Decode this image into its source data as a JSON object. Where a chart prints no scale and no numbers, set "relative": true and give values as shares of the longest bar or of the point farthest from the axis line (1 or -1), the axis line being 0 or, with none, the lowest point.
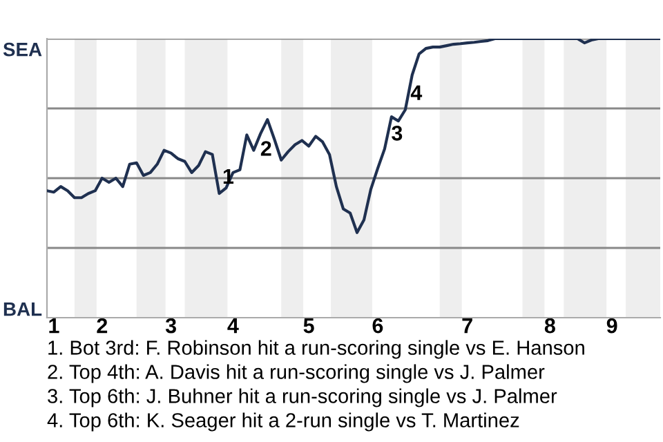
{
  "chart_data": {
    "type": "line",
    "relative": true,
    "categories": [
      null,
      "1",
      null,
      null,
      null,
      null,
      null,
      null,
      "2",
      null,
      null,
      null,
      null,
      null,
      null,
      null,
      null,
      null,
      "3",
      null,
      null,
      null,
      null,
      null,
      null,
      null,
      null,
      "4",
      null,
      null,
      null,
      null,
      null,
      null,
      null,
      null,
      null,
      null,
      "5",
      null,
      null,
      null,
      null,
      null,
      null,
      null,
      null,
      null,
      "6",
      null,
      null,
      null,
      null,
      null,
      null,
      null,
      null,
      null,
      null,
      null,
      null,
      "7",
      null,
      null,
      null,
      null,
      null,
      null,
      null,
      null,
      null,
      null,
      null,
      "8",
      null,
      null,
      null,
      null,
      null,
      null,
      null,
      null,
      "9",
      null,
      null,
      null,
      null,
      null,
      null,
      null
    ],
    "series": [
      {
        "color": "#1f3050",
        "values": [
          0.455,
          0.45,
          0.47,
          0.455,
          0.43,
          0.43,
          0.445,
          0.455,
          0.5,
          0.485,
          0.5,
          0.47,
          0.55,
          0.555,
          0.51,
          0.52,
          0.55,
          0.6,
          0.59,
          0.57,
          0.56,
          0.52,
          0.545,
          0.595,
          0.585,
          0.445,
          0.465,
          0.52,
          0.53,
          0.655,
          0.6,
          0.66,
          0.71,
          0.64,
          0.565,
          0.595,
          0.62,
          0.635,
          0.615,
          0.65,
          0.63,
          0.585,
          0.47,
          0.39,
          0.375,
          0.305,
          0.35,
          0.46,
          0.535,
          0.605,
          0.72,
          0.705,
          0.745,
          0.87,
          0.945,
          0.965,
          0.97,
          0.97,
          0.975,
          0.98,
          0.982,
          0.985,
          0.987,
          0.99,
          0.993,
          1,
          1,
          1,
          1,
          1,
          1,
          1,
          1,
          1,
          1,
          1,
          1,
          1,
          0.985,
          0.995,
          1,
          1,
          1,
          1,
          1,
          1,
          1,
          1,
          1,
          1
        ]
      }
    ],
    "ref_lines": [
      {
        "axis": "y",
        "value": 0.25,
        "color": "#888888"
      },
      {
        "axis": "y",
        "value": 0.5,
        "color": "#888888"
      },
      {
        "axis": "y",
        "value": 0.75,
        "color": "#888888"
      },
      {
        "axis": "y",
        "value": 1,
        "color": "#888888"
      }
    ],
    "annotations": [
      "SEA",
      "BAL",
      "1",
      "2",
      "3",
      "4",
      "1. Bot 3rd: F. Robinson hit a run-scoring single vs E. Hanson",
      "2. Top 4th: A. Davis hit a run-scoring single vs J. Palmer",
      "3. Top 6th: J. Buhner hit a run-scoring single vs J. Palmer",
      "4. Top 6th: K. Seager hit a 2-run single vs T. Martinez"
    ]
  }
}
